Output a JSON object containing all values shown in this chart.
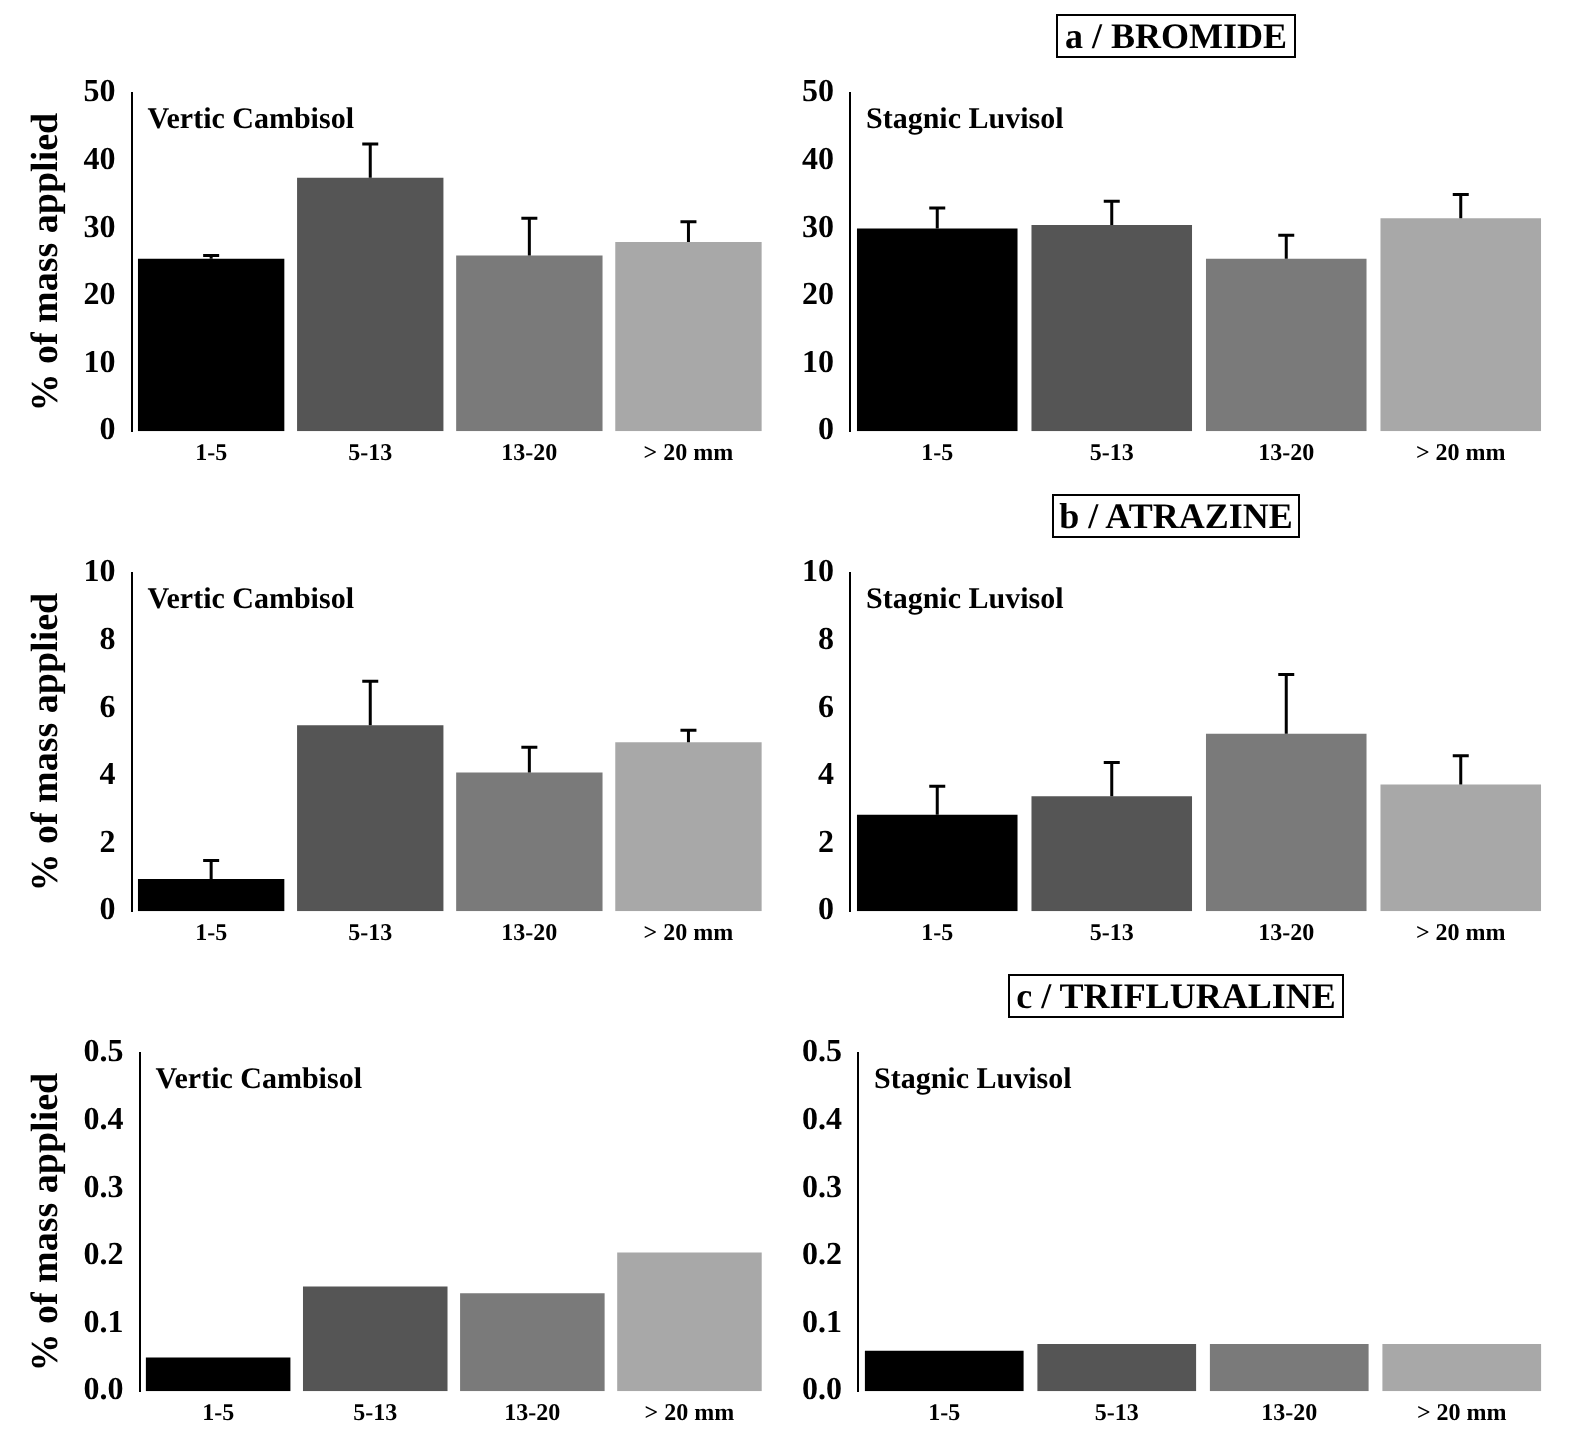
{
  "chart_data": [
    {
      "type": "bar",
      "subtitle": "Vertic Cambisol",
      "ylabel": "% of mass applied",
      "categories": [
        "1-5",
        "5-13",
        "13-20",
        "> 20 mm"
      ],
      "values": [
        25.5,
        37.5,
        26,
        28
      ],
      "errors": [
        [
          25.5,
          26
        ],
        [
          37.5,
          42.5
        ],
        [
          26,
          31.5
        ],
        [
          28,
          31
        ]
      ],
      "colors": [
        "#000000",
        "#555555",
        "#7a7a7a",
        "#a8a8a8"
      ],
      "ylim": [
        0,
        50
      ],
      "yticks": [
        0,
        10,
        20,
        30,
        40,
        50
      ]
    },
    {
      "type": "bar",
      "title": "a / BROMIDE",
      "subtitle": "Stagnic Luvisol",
      "categories": [
        "1-5",
        "5-13",
        "13-20",
        "> 20 mm"
      ],
      "values": [
        30,
        30.5,
        25.5,
        31.5
      ],
      "errors": [
        [
          30,
          33
        ],
        [
          30.5,
          34
        ],
        [
          25.5,
          29
        ],
        [
          31.5,
          35
        ]
      ],
      "colors": [
        "#000000",
        "#555555",
        "#7a7a7a",
        "#a8a8a8"
      ],
      "ylim": [
        0,
        50
      ],
      "yticks": [
        0,
        10,
        20,
        30,
        40,
        50
      ]
    },
    {
      "type": "bar",
      "subtitle": "Vertic Cambisol",
      "ylabel": "% of mass applied",
      "categories": [
        "1-5",
        "5-13",
        "13-20",
        "> 20 mm"
      ],
      "values": [
        0.95,
        5.5,
        4.1,
        5.0
      ],
      "errors": [
        [
          0.95,
          1.5
        ],
        [
          5.5,
          6.8
        ],
        [
          4.1,
          4.85
        ],
        [
          5.0,
          5.35
        ]
      ],
      "colors": [
        "#000000",
        "#555555",
        "#7a7a7a",
        "#a8a8a8"
      ],
      "ylim": [
        0,
        10
      ],
      "yticks": [
        0,
        2,
        4,
        6,
        8,
        10
      ]
    },
    {
      "type": "bar",
      "title": "b / ATRAZINE",
      "subtitle": "Stagnic Luvisol",
      "categories": [
        "1-5",
        "5-13",
        "13-20",
        "> 20 mm"
      ],
      "values": [
        2.85,
        3.4,
        5.25,
        3.75
      ],
      "errors": [
        [
          2.85,
          3.7
        ],
        [
          3.4,
          4.4
        ],
        [
          5.25,
          7.0
        ],
        [
          3.75,
          4.6
        ]
      ],
      "colors": [
        "#000000",
        "#555555",
        "#7a7a7a",
        "#a8a8a8"
      ],
      "ylim": [
        0,
        10
      ],
      "yticks": [
        0,
        2,
        4,
        6,
        8,
        10
      ]
    },
    {
      "type": "bar",
      "subtitle": "Vertic Cambisol",
      "ylabel": "% of mass applied",
      "categories": [
        "1-5",
        "5-13",
        "13-20",
        "> 20 mm"
      ],
      "values": [
        0.05,
        0.155,
        0.145,
        0.205
      ],
      "colors": [
        "#000000",
        "#555555",
        "#7a7a7a",
        "#a8a8a8"
      ],
      "ylim": [
        0,
        0.5
      ],
      "yticks": [
        {
          "value": 0,
          "label": "0.0"
        },
        0.1,
        0.2,
        0.3,
        0.4,
        0.5
      ]
    },
    {
      "type": "bar",
      "title": "c / TRIFLURALINE",
      "subtitle": "Stagnic Luvisol",
      "categories": [
        "1-5",
        "5-13",
        "13-20",
        "> 20 mm"
      ],
      "values": [
        0.06,
        0.07,
        0.07,
        0.07
      ],
      "colors": [
        "#000000",
        "#555555",
        "#7a7a7a",
        "#a8a8a8"
      ],
      "ylim": [
        0,
        0.5
      ],
      "yticks": [
        {
          "value": 0,
          "label": "0.0"
        },
        0.1,
        0.2,
        0.3,
        0.4,
        0.5
      ]
    }
  ]
}
